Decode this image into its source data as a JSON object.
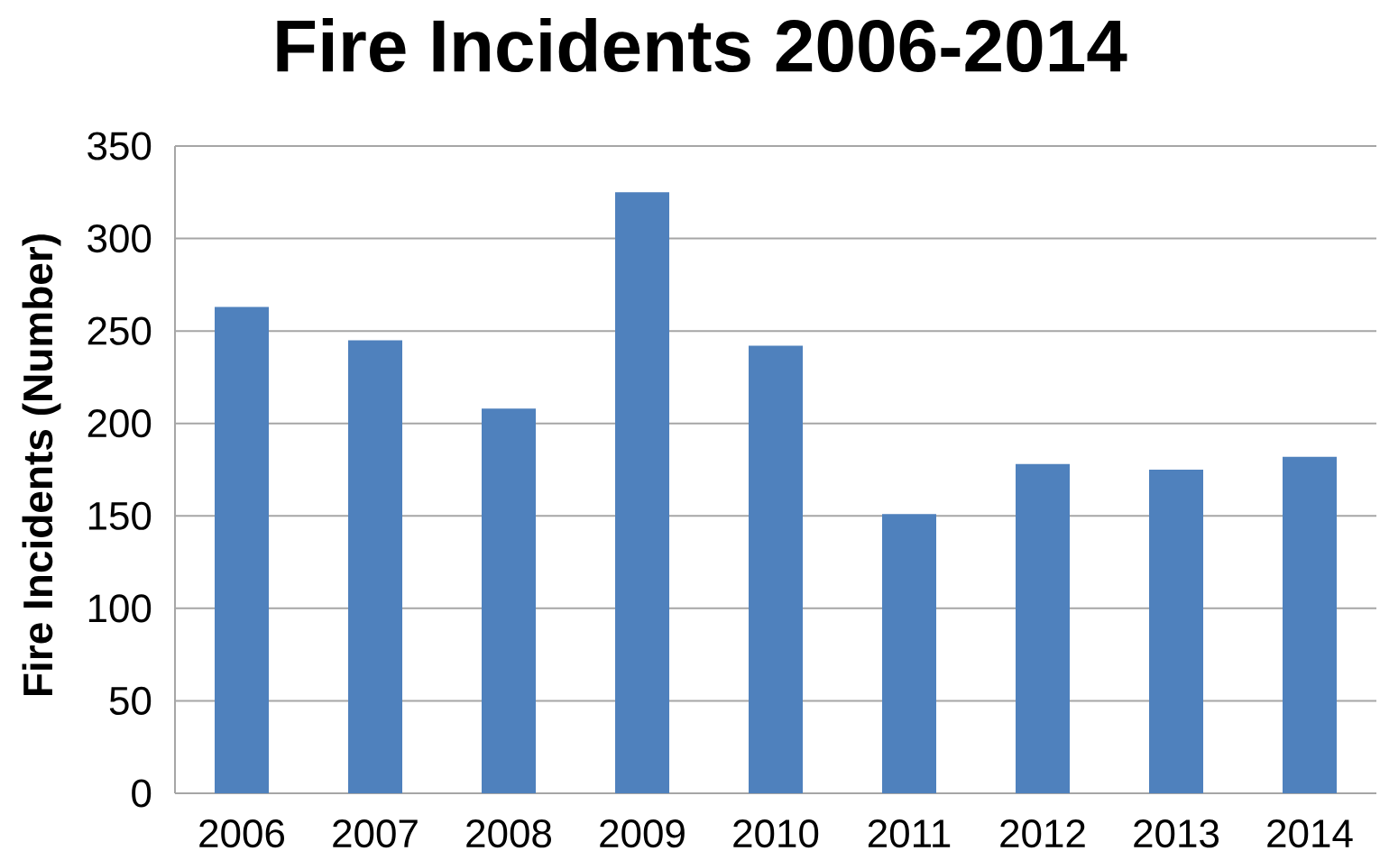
{
  "chart_data": {
    "type": "bar",
    "title": "Fire Incidents 2006-2014",
    "ylabel": "Fire Incidents (Number)",
    "categories": [
      "2006",
      "2007",
      "2008",
      "2009",
      "2010",
      "2011",
      "2012",
      "2013",
      "2014"
    ],
    "values": [
      263,
      245,
      208,
      325,
      242,
      151,
      178,
      175,
      182
    ],
    "color": "#4f81bd",
    "ylim": [
      0,
      350
    ],
    "yticks": [
      0,
      50,
      100,
      150,
      200,
      250,
      300,
      350
    ],
    "grid": "y"
  }
}
